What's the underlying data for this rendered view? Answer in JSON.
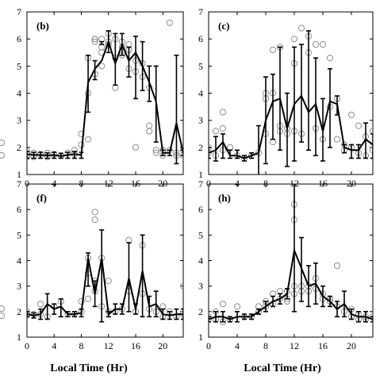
{
  "figure": {
    "xlabel": "Local Time (Hr)"
  },
  "chart_data": [
    {
      "type": "line",
      "panel_label": "(b)",
      "xlim": [
        0,
        23
      ],
      "ylim": [
        1,
        7
      ],
      "xticks": [
        0,
        4,
        8,
        12,
        16,
        20
      ],
      "yticks": [
        1,
        2,
        3,
        4,
        5,
        6,
        7
      ],
      "mean": [
        [
          0,
          1.75
        ],
        [
          1,
          1.72
        ],
        [
          2,
          1.72
        ],
        [
          3,
          1.7
        ],
        [
          4,
          1.72
        ],
        [
          5,
          1.68
        ],
        [
          6,
          1.72
        ],
        [
          7,
          1.75
        ],
        [
          8,
          1.72
        ],
        [
          9,
          4.4
        ],
        [
          10,
          4.9
        ],
        [
          11,
          5.2
        ],
        [
          12,
          5.9
        ],
        [
          13,
          5.1
        ],
        [
          14,
          5.8
        ],
        [
          15,
          5.2
        ],
        [
          16,
          5.5
        ],
        [
          17,
          5.0
        ],
        [
          18,
          4.4
        ],
        [
          19,
          3.7
        ],
        [
          20,
          1.8
        ],
        [
          21,
          1.8
        ],
        [
          22,
          2.9
        ],
        [
          23,
          1.8
        ]
      ],
      "err_low": [
        1.6,
        1.6,
        1.6,
        1.6,
        1.6,
        1.6,
        1.6,
        1.6,
        1.6,
        3.3,
        4.5,
        5.8,
        5.5,
        4.3,
        5.4,
        4.6,
        3.8,
        4.1,
        3.7,
        2.2,
        1.7,
        1.7,
        1.4,
        1.7
      ],
      "err_high": [
        1.85,
        1.82,
        1.82,
        1.8,
        1.82,
        1.78,
        1.82,
        1.85,
        1.82,
        5.4,
        5.2,
        5.9,
        6.3,
        6.2,
        6.2,
        5.7,
        6.1,
        5.9,
        5.0,
        5.0,
        1.9,
        1.9,
        5.4,
        1.9
      ],
      "points": [
        [
          0,
          1.75
        ],
        [
          0,
          1.85
        ],
        [
          0,
          1.65
        ],
        [
          1,
          1.8
        ],
        [
          1,
          1.65
        ],
        [
          2,
          1.75
        ],
        [
          3,
          1.8
        ],
        [
          3,
          1.65
        ],
        [
          4,
          1.75
        ],
        [
          5,
          1.7
        ],
        [
          6,
          1.8
        ],
        [
          7,
          1.75
        ],
        [
          7,
          1.9
        ],
        [
          8,
          2.1
        ],
        [
          8,
          2.5
        ],
        [
          9,
          5.3
        ],
        [
          9,
          4.0
        ],
        [
          9,
          2.3
        ],
        [
          10,
          6.0
        ],
        [
          10,
          6.0
        ],
        [
          10,
          5.9
        ],
        [
          10,
          4.7
        ],
        [
          11,
          5.5
        ],
        [
          11,
          6.0
        ],
        [
          11,
          5.7
        ],
        [
          11,
          5.0
        ],
        [
          12,
          6.2
        ],
        [
          12,
          5.9
        ],
        [
          12,
          5.8
        ],
        [
          13,
          6.0
        ],
        [
          13,
          5.3
        ],
        [
          13,
          4.2
        ],
        [
          14,
          5.9
        ],
        [
          14,
          5.7
        ],
        [
          14,
          5.4
        ],
        [
          15,
          5.8
        ],
        [
          15,
          5.6
        ],
        [
          15,
          4.9
        ],
        [
          16,
          2.0
        ],
        [
          16,
          4.8
        ],
        [
          16,
          5.2
        ],
        [
          17,
          5.1
        ],
        [
          17,
          4.6
        ],
        [
          18,
          4.2
        ],
        [
          18,
          2.8
        ],
        [
          18,
          2.6
        ],
        [
          19,
          1.9
        ],
        [
          19,
          1.8
        ],
        [
          20,
          1.9
        ],
        [
          20,
          1.7
        ],
        [
          21,
          6.6
        ],
        [
          21,
          1.9
        ],
        [
          22,
          1.8
        ],
        [
          22,
          1.7
        ],
        [
          23,
          1.9
        ],
        [
          23,
          1.7
        ]
      ]
    },
    {
      "type": "line",
      "panel_label": "(c)",
      "xlim": [
        0,
        23
      ],
      "ylim": [
        1,
        7
      ],
      "xticks": [
        0,
        4,
        8,
        12,
        16,
        20
      ],
      "yticks": [
        1,
        2,
        3,
        4,
        5,
        6,
        7
      ],
      "mean": [
        [
          0,
          1.8
        ],
        [
          1,
          1.9
        ],
        [
          2,
          2.2
        ],
        [
          3,
          1.7
        ],
        [
          4,
          1.7
        ],
        [
          5,
          1.6
        ],
        [
          6,
          1.7
        ],
        [
          7,
          1.8
        ],
        [
          8,
          3.0
        ],
        [
          9,
          3.7
        ],
        [
          10,
          3.8
        ],
        [
          11,
          2.7
        ],
        [
          12,
          3.6
        ],
        [
          13,
          3.9
        ],
        [
          14,
          3.3
        ],
        [
          15,
          3.6
        ],
        [
          16,
          2.6
        ],
        [
          17,
          3.7
        ],
        [
          18,
          3.6
        ],
        [
          19,
          2.0
        ],
        [
          20,
          1.9
        ],
        [
          21,
          1.9
        ],
        [
          22,
          2.3
        ],
        [
          23,
          2.1
        ]
      ],
      "err_low": [
        1.6,
        1.5,
        1.6,
        1.6,
        1.6,
        1.5,
        1.6,
        0.9,
        1.4,
        2.3,
        1.9,
        1.3,
        1.5,
        2.2,
        1.9,
        1.7,
        1.5,
        2.0,
        3.2,
        1.8,
        1.6,
        1.6,
        1.6,
        1.6
      ],
      "err_high": [
        2.0,
        2.4,
        2.5,
        1.9,
        1.9,
        1.7,
        1.8,
        2.8,
        4.6,
        4.7,
        5.7,
        4.0,
        5.7,
        5.8,
        6.3,
        5.3,
        3.8,
        4.9,
        3.9,
        2.1,
        2.1,
        2.1,
        2.9,
        2.5
      ],
      "points": [
        [
          0,
          1.8
        ],
        [
          0,
          2.0
        ],
        [
          1,
          1.7
        ],
        [
          1,
          2.6
        ],
        [
          2,
          3.3
        ],
        [
          2,
          2.7
        ],
        [
          2,
          1.9
        ],
        [
          3,
          2.0
        ],
        [
          4,
          1.7
        ],
        [
          5,
          1.6
        ],
        [
          6,
          1.7
        ],
        [
          7,
          1.8
        ],
        [
          8,
          4.0
        ],
        [
          8,
          3.8
        ],
        [
          8,
          2.5
        ],
        [
          9,
          5.6
        ],
        [
          9,
          4.0
        ],
        [
          9,
          2.2
        ],
        [
          10,
          5.7
        ],
        [
          10,
          2.8
        ],
        [
          10,
          2.6
        ],
        [
          11,
          2.7
        ],
        [
          11,
          2.5
        ],
        [
          12,
          6.0
        ],
        [
          12,
          5.1
        ],
        [
          12,
          2.6
        ],
        [
          13,
          6.4
        ],
        [
          13,
          2.5
        ],
        [
          14,
          6.1
        ],
        [
          14,
          5.5
        ],
        [
          15,
          5.8
        ],
        [
          15,
          2.7
        ],
        [
          16,
          5.8
        ],
        [
          16,
          2.3
        ],
        [
          17,
          5.3
        ],
        [
          17,
          3.5
        ],
        [
          18,
          3.8
        ],
        [
          18,
          2.3
        ],
        [
          19,
          2.1
        ],
        [
          19,
          1.9
        ],
        [
          20,
          3.2
        ],
        [
          20,
          2.0
        ],
        [
          21,
          2.8
        ],
        [
          21,
          1.8
        ],
        [
          22,
          2.4
        ],
        [
          22,
          1.7
        ],
        [
          23,
          2.6
        ],
        [
          23,
          1.9
        ]
      ]
    },
    {
      "type": "line",
      "panel_label": "(f)",
      "xlim": [
        0,
        23
      ],
      "ylim": [
        1,
        7
      ],
      "xticks": [
        0,
        4,
        8,
        12,
        16,
        20
      ],
      "yticks": [
        1,
        2,
        3,
        4,
        5,
        6,
        7
      ],
      "mean": [
        [
          0,
          1.9
        ],
        [
          1,
          1.85
        ],
        [
          2,
          1.9
        ],
        [
          3,
          2.3
        ],
        [
          4,
          2.1
        ],
        [
          5,
          2.2
        ],
        [
          6,
          1.9
        ],
        [
          7,
          1.9
        ],
        [
          8,
          1.95
        ],
        [
          9,
          4.1
        ],
        [
          10,
          2.7
        ],
        [
          11,
          4.1
        ],
        [
          12,
          1.9
        ],
        [
          13,
          2.1
        ],
        [
          14,
          2.1
        ],
        [
          15,
          3.3
        ],
        [
          16,
          2.1
        ],
        [
          17,
          3.6
        ],
        [
          18,
          2.2
        ],
        [
          19,
          2.3
        ],
        [
          20,
          1.9
        ],
        [
          21,
          1.85
        ],
        [
          22,
          1.9
        ],
        [
          23,
          1.9
        ]
      ],
      "err_low": [
        1.8,
        1.75,
        1.7,
        1.7,
        1.9,
        1.8,
        1.8,
        1.8,
        1.8,
        3.0,
        2.2,
        1.6,
        1.8,
        1.9,
        1.9,
        2.0,
        1.9,
        1.8,
        1.8,
        1.8,
        1.7,
        1.7,
        1.7,
        1.7
      ],
      "err_high": [
        2.0,
        1.95,
        2.1,
        2.7,
        2.3,
        2.5,
        2.0,
        2.0,
        2.1,
        4.3,
        3.2,
        5.2,
        2.0,
        2.3,
        2.3,
        4.7,
        2.3,
        5.0,
        2.6,
        2.8,
        2.1,
        2.0,
        2.1,
        2.1
      ],
      "points": [
        [
          0,
          1.85
        ],
        [
          0,
          2.0
        ],
        [
          1,
          1.9
        ],
        [
          2,
          2.3
        ],
        [
          2,
          1.9
        ],
        [
          3,
          1.8
        ],
        [
          4,
          2.2
        ],
        [
          5,
          2.4
        ],
        [
          6,
          1.9
        ],
        [
          7,
          1.9
        ],
        [
          8,
          2.4
        ],
        [
          8,
          2.0
        ],
        [
          9,
          4.1
        ],
        [
          9,
          3.5
        ],
        [
          9,
          2.5
        ],
        [
          10,
          5.9
        ],
        [
          10,
          5.6
        ],
        [
          10,
          3.2
        ],
        [
          10,
          2.8
        ],
        [
          11,
          4.1
        ],
        [
          11,
          2.2
        ],
        [
          12,
          3.2
        ],
        [
          12,
          2.0
        ],
        [
          13,
          2.0
        ],
        [
          14,
          2.1
        ],
        [
          15,
          4.8
        ],
        [
          15,
          2.8
        ],
        [
          16,
          2.0
        ],
        [
          17,
          4.6
        ],
        [
          17,
          2.7
        ],
        [
          18,
          2.1
        ],
        [
          19,
          2.0
        ],
        [
          20,
          2.2
        ],
        [
          20,
          1.8
        ],
        [
          21,
          2.0
        ],
        [
          22,
          1.8
        ],
        [
          23,
          3.0
        ],
        [
          23,
          1.9
        ]
      ]
    },
    {
      "type": "line",
      "panel_label": "(h)",
      "xlim": [
        0,
        23
      ],
      "ylim": [
        1,
        7
      ],
      "xticks": [
        0,
        4,
        8,
        12,
        16,
        20
      ],
      "yticks": [
        1,
        2,
        3,
        4,
        5,
        6,
        7
      ],
      "mean": [
        [
          0,
          1.7
        ],
        [
          1,
          1.8
        ],
        [
          2,
          1.8
        ],
        [
          3,
          1.7
        ],
        [
          4,
          1.8
        ],
        [
          5,
          1.8
        ],
        [
          6,
          1.8
        ],
        [
          7,
          2.0
        ],
        [
          8,
          2.2
        ],
        [
          9,
          2.4
        ],
        [
          10,
          2.5
        ],
        [
          11,
          2.7
        ],
        [
          12,
          4.4
        ],
        [
          13,
          3.7
        ],
        [
          14,
          3.0
        ],
        [
          15,
          3.1
        ],
        [
          16,
          2.6
        ],
        [
          17,
          2.4
        ],
        [
          18,
          2.1
        ],
        [
          19,
          2.3
        ],
        [
          20,
          1.9
        ],
        [
          21,
          1.8
        ],
        [
          22,
          1.8
        ],
        [
          23,
          1.7
        ]
      ],
      "err_low": [
        1.6,
        1.6,
        1.6,
        1.6,
        1.6,
        1.7,
        1.7,
        1.9,
        2.0,
        2.2,
        2.3,
        2.5,
        2.0,
        2.4,
        2.2,
        2.3,
        2.2,
        2.2,
        1.8,
        1.8,
        1.7,
        1.6,
        1.6,
        1.6
      ],
      "err_high": [
        1.8,
        2.0,
        2.0,
        1.8,
        2.0,
        1.9,
        1.9,
        2.1,
        2.4,
        2.6,
        2.7,
        2.9,
        7.0,
        4.9,
        3.8,
        3.9,
        3.0,
        2.6,
        2.4,
        2.8,
        2.1,
        2.0,
        2.0,
        1.8
      ],
      "points": [
        [
          0,
          1.7
        ],
        [
          0,
          1.8
        ],
        [
          1,
          2.0
        ],
        [
          1,
          1.7
        ],
        [
          2,
          2.3
        ],
        [
          2,
          1.6
        ],
        [
          3,
          1.7
        ],
        [
          4,
          2.2
        ],
        [
          5,
          1.8
        ],
        [
          6,
          1.8
        ],
        [
          7,
          2.0
        ],
        [
          7,
          2.2
        ],
        [
          8,
          2.4
        ],
        [
          8,
          2.2
        ],
        [
          9,
          2.7
        ],
        [
          9,
          2.3
        ],
        [
          10,
          2.5
        ],
        [
          10,
          2.8
        ],
        [
          11,
          2.8
        ],
        [
          11,
          2.5
        ],
        [
          11,
          2.4
        ],
        [
          12,
          6.2
        ],
        [
          12,
          5.6
        ],
        [
          12,
          3.0
        ],
        [
          12,
          2.7
        ],
        [
          13,
          3.0
        ],
        [
          13,
          2.8
        ],
        [
          14,
          3.0
        ],
        [
          14,
          2.8
        ],
        [
          15,
          3.3
        ],
        [
          15,
          2.9
        ],
        [
          16,
          2.7
        ],
        [
          16,
          2.5
        ],
        [
          17,
          2.5
        ],
        [
          17,
          2.4
        ],
        [
          18,
          3.8
        ],
        [
          18,
          2.2
        ],
        [
          19,
          2.0
        ],
        [
          20,
          2.1
        ],
        [
          20,
          1.8
        ],
        [
          21,
          1.9
        ],
        [
          21,
          1.7
        ],
        [
          22,
          1.8
        ],
        [
          22,
          1.7
        ],
        [
          23,
          1.8
        ]
      ]
    }
  ]
}
